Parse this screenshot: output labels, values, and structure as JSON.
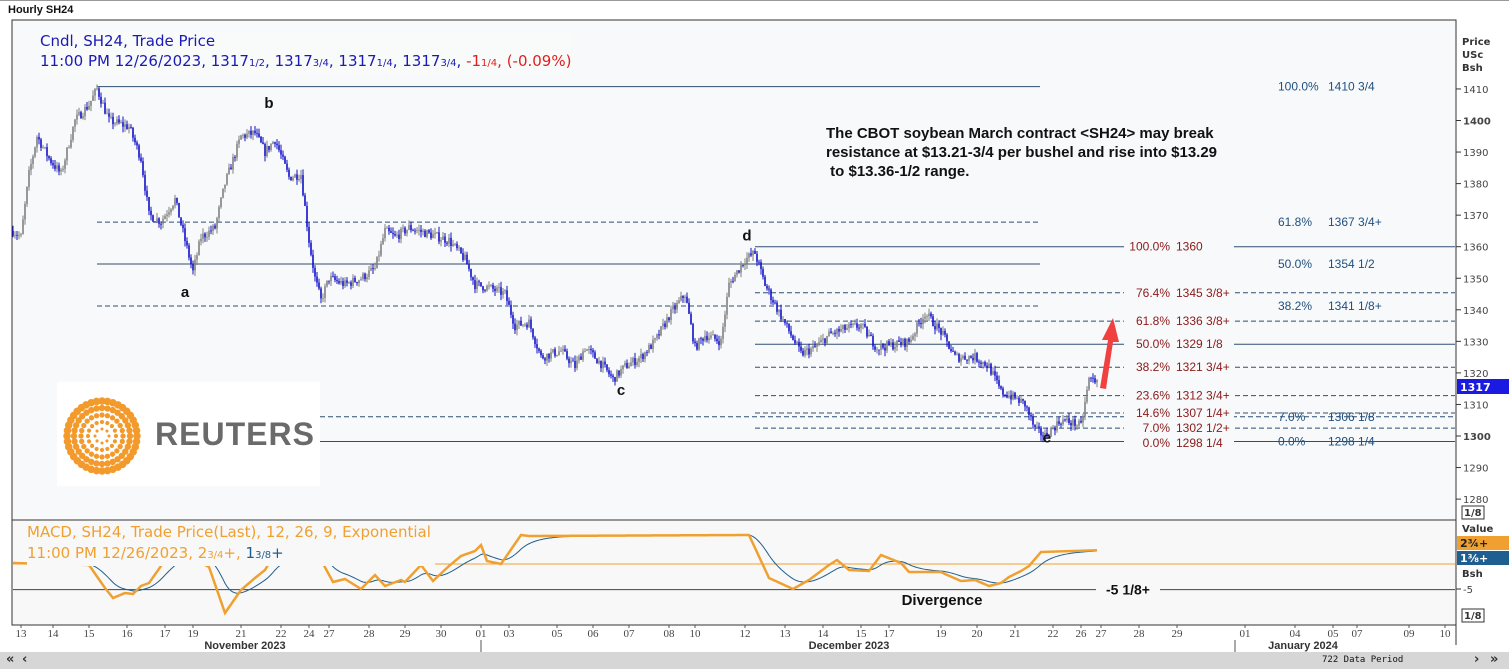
{
  "window_title": "Hourly SH24",
  "legend_price": {
    "line1": "Cndl, SH24, Trade Price",
    "datetime": "11:00 PM 12/26/2023,",
    "open": {
      "whole": "1317",
      "frac": "1/2"
    },
    "high": {
      "whole": "1317",
      "frac": "3/4"
    },
    "low": {
      "whole": "1317",
      "frac": "1/4"
    },
    "close": {
      "whole": "1317",
      "frac": "3/4"
    },
    "change": {
      "whole": "-1",
      "frac": "1/4"
    },
    "change_pct": "(-0.09%)"
  },
  "legend_macd": {
    "line1": "MACD, SH24, Trade Price(Last),  12, 26, 9, Exponential",
    "datetime": "11:00 PM 12/26/2023,",
    "macd": {
      "whole": "2",
      "frac": "3/4",
      "suffix": "+"
    },
    "signal": {
      "whole": "1",
      "frac": "3/8",
      "suffix": "+"
    }
  },
  "annotation": "The CBOT soybean March contract <SH24> may break\nresistance at $13.21-3/4 per bushel and rise into $13.29\n to $13.36-1/2 range.",
  "logo_text": "REUTERS",
  "colors": {
    "candle_down": "#1010c8",
    "candle_up": "#808080",
    "macd": "#f0a030",
    "signal": "#1f5f8f",
    "fib_red": "#8b1a1a",
    "fib_blue": "#1f4f7f",
    "price_tag": "#1a1ae0",
    "arrow": "#f04040"
  },
  "chart_data": [
    {
      "type": "candlestick",
      "title": "Cndl, SH24, Trade Price",
      "ylabel": "Price USc Bsh",
      "ylim": [
        1273,
        1423
      ],
      "yticks": [
        1280,
        1290,
        1300,
        1310,
        1320,
        1330,
        1340,
        1350,
        1360,
        1370,
        1380,
        1390,
        1400,
        1410
      ],
      "y_axis_labels": [
        "Price",
        "USc",
        "Bsh"
      ],
      "scale_box": "1/8",
      "last_price_tag": "1317",
      "price_path": [
        [
          0,
          1365
        ],
        [
          4,
          1363
        ],
        [
          8,
          1383
        ],
        [
          12,
          1395
        ],
        [
          18,
          1388
        ],
        [
          24,
          1383
        ],
        [
          31,
          1400
        ],
        [
          38,
          1405
        ],
        [
          42,
          1410
        ],
        [
          48,
          1400
        ],
        [
          58,
          1398
        ],
        [
          64,
          1388
        ],
        [
          68,
          1370
        ],
        [
          74,
          1368
        ],
        [
          81,
          1375
        ],
        [
          86,
          1362
        ],
        [
          90,
          1352
        ],
        [
          94,
          1363
        ],
        [
          101,
          1366
        ],
        [
          106,
          1380
        ],
        [
          114,
          1395
        ],
        [
          121,
          1396
        ],
        [
          126,
          1390
        ],
        [
          131,
          1394
        ],
        [
          138,
          1382
        ],
        [
          144,
          1383
        ],
        [
          148,
          1362
        ],
        [
          151,
          1350
        ],
        [
          154,
          1343
        ],
        [
          158,
          1350
        ],
        [
          166,
          1348
        ],
        [
          174,
          1350
        ],
        [
          181,
          1353
        ],
        [
          186,
          1365
        ],
        [
          191,
          1363
        ],
        [
          198,
          1366
        ],
        [
          208,
          1364
        ],
        [
          218,
          1362
        ],
        [
          226,
          1356
        ],
        [
          231,
          1348
        ],
        [
          238,
          1347
        ],
        [
          246,
          1345
        ],
        [
          251,
          1335
        ],
        [
          258,
          1336
        ],
        [
          264,
          1325
        ],
        [
          274,
          1327
        ],
        [
          281,
          1322
        ],
        [
          286,
          1328
        ],
        [
          294,
          1323
        ],
        [
          300,
          1318
        ],
        [
          306,
          1322
        ],
        [
          314,
          1325
        ],
        [
          321,
          1330
        ],
        [
          328,
          1338
        ],
        [
          336,
          1345
        ],
        [
          341,
          1328
        ],
        [
          346,
          1332
        ],
        [
          354,
          1330
        ],
        [
          358,
          1348
        ],
        [
          366,
          1356
        ],
        [
          371,
          1358
        ],
        [
          376,
          1348
        ],
        [
          384,
          1338
        ],
        [
          394,
          1326
        ],
        [
          401,
          1328
        ],
        [
          408,
          1332
        ],
        [
          416,
          1334
        ],
        [
          424,
          1335
        ],
        [
          432,
          1328
        ],
        [
          441,
          1329
        ],
        [
          448,
          1330
        ],
        [
          456,
          1339
        ],
        [
          464,
          1333
        ],
        [
          471,
          1325
        ],
        [
          481,
          1325
        ],
        [
          488,
          1322
        ],
        [
          494,
          1314
        ],
        [
          501,
          1312
        ],
        [
          506,
          1310
        ],
        [
          511,
          1302
        ],
        [
          516,
          1300
        ],
        [
          524,
          1305
        ],
        [
          531,
          1304
        ],
        [
          534,
          1303
        ],
        [
          538,
          1318
        ],
        [
          542,
          1317.75
        ]
      ],
      "wave_labels": [
        {
          "label": "a",
          "bar": 86,
          "price": 1344
        },
        {
          "label": "b",
          "bar": 128,
          "price": 1404
        },
        {
          "label": "c",
          "bar": 304,
          "price": 1313
        },
        {
          "label": "d",
          "bar": 367,
          "price": 1362
        },
        {
          "label": "e",
          "bar": 517,
          "price": 1298
        }
      ],
      "fib_retracement_1": {
        "from_bar": 42,
        "to_bar": 514,
        "levels": [
          {
            "pct": "100.0%",
            "value": "1410 3/4",
            "price": 1410.75,
            "style": "solid"
          },
          {
            "pct": "61.8%",
            "value": "1367 3/4+",
            "price": 1367.8,
            "style": "dashed"
          },
          {
            "pct": "50.0%",
            "value": "1354 1/2",
            "price": 1354.5,
            "style": "solid"
          },
          {
            "pct": "38.2%",
            "value": "1341 1/8+",
            "price": 1341.2,
            "style": "dashed"
          },
          {
            "pct": "7.0%",
            "value": "1306 1/8",
            "price": 1306.1,
            "style": "dashed"
          },
          {
            "pct": "0.0%",
            "value": "1298 1/4",
            "price": 1298.25,
            "style": "solid"
          }
        ]
      },
      "fib_retracement_2": {
        "from_bar": 371,
        "to_bar": 721,
        "levels": [
          {
            "pct": "100.0%",
            "value": "1360",
            "price": 1360,
            "style": "solid"
          },
          {
            "pct": "76.4%",
            "value": "1345 3/8+",
            "price": 1345.4,
            "style": "dashed"
          },
          {
            "pct": "61.8%",
            "value": "1336 3/8+",
            "price": 1336.4,
            "style": "dashed"
          },
          {
            "pct": "50.0%",
            "value": "1329 1/8",
            "price": 1329.1,
            "style": "solid"
          },
          {
            "pct": "38.2%",
            "value": "1321 3/4+",
            "price": 1321.8,
            "style": "dashed"
          },
          {
            "pct": "23.6%",
            "value": "1312 3/4+",
            "price": 1312.8,
            "style": "dashed"
          },
          {
            "pct": "14.6%",
            "value": "1307 1/4+",
            "price": 1307.3,
            "style": "dashed"
          },
          {
            "pct": "7.0%",
            "value": "1302 1/2+",
            "price": 1302.5,
            "style": "dashed"
          },
          {
            "pct": "0.0%",
            "value": "1298 1/4",
            "price": 1298.25,
            "style": "solid"
          }
        ]
      }
    },
    {
      "type": "line",
      "title": "MACD, SH24, Trade Price(Last), 12, 26, 9, Exponential",
      "ylabel": "Value",
      "ylim": [
        -11,
        8.8
      ],
      "level_line": {
        "value": -5.125,
        "label": "-5 1/8+"
      },
      "annotation": "Divergence",
      "axis_tick": "-5",
      "axis_title": "Value",
      "axis_sub": "Bsh",
      "scale_box": "1/8",
      "macd_tag": "2¾+",
      "signal_tag": "1⅜+",
      "macd_path": [
        [
          0,
          0.2
        ],
        [
          38,
          -0.2
        ],
        [
          46,
          -4.8
        ],
        [
          50,
          -6.8
        ],
        [
          56,
          -5.8
        ],
        [
          60,
          -6
        ],
        [
          64,
          -4.4
        ],
        [
          68,
          -3.8
        ],
        [
          74,
          -0.4
        ],
        [
          76,
          1
        ],
        [
          88,
          4.2
        ],
        [
          94,
          0.2
        ],
        [
          98,
          -0.6
        ],
        [
          106,
          -9.8
        ],
        [
          114,
          -5.2
        ],
        [
          121,
          -2.8
        ],
        [
          126,
          -1.2
        ],
        [
          131,
          2.2
        ],
        [
          136,
          2
        ],
        [
          144,
          1.8
        ],
        [
          154,
          0.8
        ],
        [
          160,
          -3.6
        ],
        [
          166,
          -3
        ],
        [
          174,
          -5
        ],
        [
          181,
          -2.2
        ],
        [
          186,
          -4.4
        ],
        [
          194,
          -3.2
        ],
        [
          196,
          -3.6
        ],
        [
          204,
          -0.2
        ],
        [
          210,
          -3.4
        ],
        [
          218,
          -0.4
        ],
        [
          224,
          1.6
        ],
        [
          231,
          2.6
        ],
        [
          234,
          3.8
        ],
        [
          237,
          0.6
        ],
        [
          244,
          0
        ],
        [
          254,
          5.8
        ],
        [
          258,
          5.6
        ],
        [
          368,
          5.8
        ],
        [
          378,
          -2.8
        ],
        [
          390,
          -5
        ],
        [
          398,
          -3.2
        ],
        [
          408,
          -0.2
        ],
        [
          412,
          0.8
        ],
        [
          418,
          -1.2
        ],
        [
          428,
          -1.4
        ],
        [
          434,
          1.8
        ],
        [
          444,
          0.2
        ],
        [
          448,
          -1.6
        ],
        [
          464,
          -1.6
        ],
        [
          466,
          -2
        ],
        [
          474,
          -3.4
        ],
        [
          481,
          -3.2
        ],
        [
          488,
          -4.4
        ],
        [
          494,
          -3.8
        ],
        [
          498,
          -2.6
        ],
        [
          504,
          -1.4
        ],
        [
          508,
          -0.4
        ],
        [
          514,
          2.4
        ],
        [
          542,
          2.75
        ]
      ]
    }
  ],
  "x_axis": {
    "ticks": [
      [
        4,
        "13"
      ],
      [
        20,
        "14"
      ],
      [
        38,
        "15"
      ],
      [
        57,
        "16"
      ],
      [
        76,
        "17"
      ],
      [
        90,
        "19"
      ],
      [
        114,
        "21"
      ],
      [
        134,
        "22"
      ],
      [
        148,
        "24"
      ],
      [
        158,
        "27"
      ],
      [
        178,
        "28"
      ],
      [
        196,
        "29"
      ],
      [
        214,
        "30"
      ],
      [
        234,
        "01"
      ],
      [
        248,
        "03"
      ],
      [
        272,
        "05"
      ],
      [
        290,
        "06"
      ],
      [
        308,
        "07"
      ],
      [
        328,
        "08"
      ],
      [
        341,
        "10"
      ],
      [
        366,
        "12"
      ],
      [
        386,
        "13"
      ],
      [
        405,
        "14"
      ],
      [
        424,
        "15"
      ],
      [
        438,
        "17"
      ],
      [
        464,
        "19"
      ],
      [
        482,
        "20"
      ],
      [
        501,
        "21"
      ],
      [
        520,
        "22"
      ],
      [
        534,
        "26"
      ],
      [
        544,
        "27"
      ],
      [
        563,
        "28"
      ],
      [
        582,
        "29"
      ],
      [
        616,
        "01"
      ],
      [
        641,
        "04"
      ],
      [
        660,
        "05"
      ],
      [
        672,
        "07"
      ],
      [
        698,
        "09"
      ],
      [
        716,
        "10"
      ]
    ],
    "months": [
      [
        116,
        "November 2023"
      ],
      [
        418,
        "December 2023"
      ],
      [
        645,
        "January 2024"
      ]
    ],
    "separators": [
      234,
      611
    ]
  },
  "scrollbar": {
    "first": "«",
    "prev": "‹",
    "next": "›",
    "last": "»",
    "period_label": "722 Data Period"
  }
}
